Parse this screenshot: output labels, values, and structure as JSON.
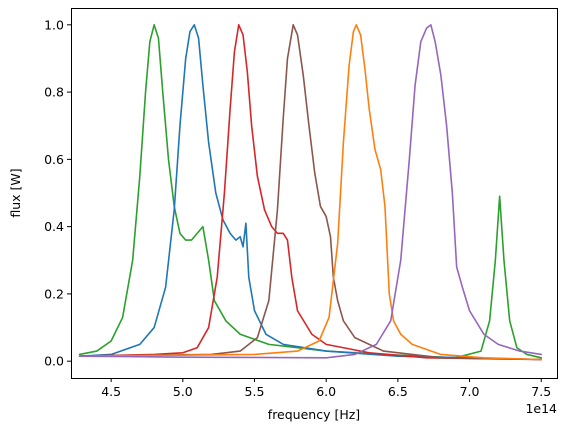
{
  "chart_data": {
    "type": "line",
    "title": "",
    "xlabel": "frequency [Hz]",
    "ylabel": "flux [W]",
    "x_offset_label": "1e14",
    "x_scale_exponent": 14,
    "xlim": [
      422000000000000.0,
      761000000000000.0
    ],
    "ylim": [
      -0.05,
      1.05
    ],
    "x_ticks": [
      450000000000000.0,
      500000000000000.0,
      550000000000000.0,
      600000000000000.0,
      650000000000000.0,
      700000000000000.0,
      750000000000000.0
    ],
    "x_tick_labels": [
      "4.5",
      "5.0",
      "5.5",
      "6.0",
      "6.5",
      "7.0",
      "7.5"
    ],
    "y_ticks": [
      0.0,
      0.2,
      0.4,
      0.6,
      0.8,
      1.0
    ],
    "y_tick_labels": [
      "0.0",
      "0.2",
      "0.4",
      "0.6",
      "0.8",
      "1.0"
    ],
    "grid": false,
    "legend": "none",
    "series": [
      {
        "color": "#2ca02c",
        "points": [
          [
            428000000000000.0,
            0.02
          ],
          [
            440000000000000.0,
            0.03
          ],
          [
            450000000000000.0,
            0.06
          ],
          [
            458000000000000.0,
            0.13
          ],
          [
            465000000000000.0,
            0.3
          ],
          [
            470000000000000.0,
            0.55
          ],
          [
            474000000000000.0,
            0.8
          ],
          [
            477000000000000.0,
            0.95
          ],
          [
            480000000000000.0,
            1.0
          ],
          [
            483000000000000.0,
            0.96
          ],
          [
            486000000000000.0,
            0.8
          ],
          [
            490000000000000.0,
            0.6
          ],
          [
            494000000000000.0,
            0.46
          ],
          [
            498000000000000.0,
            0.38
          ],
          [
            502000000000000.0,
            0.36
          ],
          [
            506000000000000.0,
            0.36
          ],
          [
            510000000000000.0,
            0.38
          ],
          [
            514000000000000.0,
            0.4
          ],
          [
            518000000000000.0,
            0.3
          ],
          [
            522000000000000.0,
            0.18
          ],
          [
            530000000000000.0,
            0.12
          ],
          [
            540000000000000.0,
            0.08
          ],
          [
            560000000000000.0,
            0.05
          ],
          [
            580000000000000.0,
            0.04
          ],
          [
            600000000000000.0,
            0.03
          ],
          [
            640000000000000.0,
            0.02
          ],
          [
            690000000000000.0,
            0.01
          ],
          [
            708000000000000.0,
            0.03
          ],
          [
            714000000000000.0,
            0.12
          ],
          [
            718000000000000.0,
            0.3
          ],
          [
            721000000000000.0,
            0.49
          ],
          [
            724000000000000.0,
            0.3
          ],
          [
            728000000000000.0,
            0.12
          ],
          [
            733000000000000.0,
            0.04
          ],
          [
            740000000000000.0,
            0.02
          ],
          [
            750000000000000.0,
            0.01
          ]
        ]
      },
      {
        "color": "#1f77b4",
        "points": [
          [
            428000000000000.0,
            0.015
          ],
          [
            450000000000000.0,
            0.02
          ],
          [
            470000000000000.0,
            0.05
          ],
          [
            480000000000000.0,
            0.1
          ],
          [
            488000000000000.0,
            0.22
          ],
          [
            494000000000000.0,
            0.45
          ],
          [
            498000000000000.0,
            0.7
          ],
          [
            502000000000000.0,
            0.9
          ],
          [
            505000000000000.0,
            0.98
          ],
          [
            508000000000000.0,
            1.0
          ],
          [
            511000000000000.0,
            0.96
          ],
          [
            514000000000000.0,
            0.82
          ],
          [
            518000000000000.0,
            0.65
          ],
          [
            523000000000000.0,
            0.5
          ],
          [
            528000000000000.0,
            0.42
          ],
          [
            533000000000000.0,
            0.38
          ],
          [
            537000000000000.0,
            0.36
          ],
          [
            540000000000000.0,
            0.37
          ],
          [
            542000000000000.0,
            0.34
          ],
          [
            544000000000000.0,
            0.41
          ],
          [
            546000000000000.0,
            0.25
          ],
          [
            550000000000000.0,
            0.15
          ],
          [
            558000000000000.0,
            0.08
          ],
          [
            570000000000000.0,
            0.05
          ],
          [
            600000000000000.0,
            0.03
          ],
          [
            650000000000000.0,
            0.015
          ],
          [
            700000000000000.0,
            0.01
          ],
          [
            750000000000000.0,
            0.005
          ]
        ]
      },
      {
        "color": "#d62728",
        "points": [
          [
            428000000000000.0,
            0.015
          ],
          [
            480000000000000.0,
            0.02
          ],
          [
            500000000000000.0,
            0.025
          ],
          [
            510000000000000.0,
            0.04
          ],
          [
            518000000000000.0,
            0.1
          ],
          [
            524000000000000.0,
            0.25
          ],
          [
            529000000000000.0,
            0.5
          ],
          [
            533000000000000.0,
            0.75
          ],
          [
            536000000000000.0,
            0.92
          ],
          [
            539000000000000.0,
            1.0
          ],
          [
            542000000000000.0,
            0.97
          ],
          [
            545000000000000.0,
            0.86
          ],
          [
            548000000000000.0,
            0.7
          ],
          [
            552000000000000.0,
            0.55
          ],
          [
            557000000000000.0,
            0.45
          ],
          [
            562000000000000.0,
            0.4
          ],
          [
            566000000000000.0,
            0.38
          ],
          [
            570000000000000.0,
            0.38
          ],
          [
            573000000000000.0,
            0.36
          ],
          [
            576000000000000.0,
            0.25
          ],
          [
            580000000000000.0,
            0.15
          ],
          [
            590000000000000.0,
            0.08
          ],
          [
            600000000000000.0,
            0.05
          ],
          [
            630000000000000.0,
            0.025
          ],
          [
            670000000000000.0,
            0.01
          ],
          [
            750000000000000.0,
            0.005
          ]
        ]
      },
      {
        "color": "#8c564b",
        "points": [
          [
            428000000000000.0,
            0.015
          ],
          [
            520000000000000.0,
            0.02
          ],
          [
            540000000000000.0,
            0.03
          ],
          [
            552000000000000.0,
            0.07
          ],
          [
            560000000000000.0,
            0.18
          ],
          [
            566000000000000.0,
            0.45
          ],
          [
            570000000000000.0,
            0.72
          ],
          [
            573000000000000.0,
            0.9
          ],
          [
            577000000000000.0,
            1.0
          ],
          [
            580000000000000.0,
            0.97
          ],
          [
            584000000000000.0,
            0.85
          ],
          [
            588000000000000.0,
            0.7
          ],
          [
            592000000000000.0,
            0.56
          ],
          [
            596000000000000.0,
            0.46
          ],
          [
            600000000000000.0,
            0.43
          ],
          [
            603000000000000.0,
            0.37
          ],
          [
            605000000000000.0,
            0.25
          ],
          [
            608000000000000.0,
            0.18
          ],
          [
            612000000000000.0,
            0.12
          ],
          [
            620000000000000.0,
            0.07
          ],
          [
            640000000000000.0,
            0.03
          ],
          [
            680000000000000.0,
            0.01
          ],
          [
            750000000000000.0,
            0.005
          ]
        ]
      },
      {
        "color": "#ff7f0e",
        "points": [
          [
            428000000000000.0,
            0.015
          ],
          [
            550000000000000.0,
            0.02
          ],
          [
            580000000000000.0,
            0.03
          ],
          [
            595000000000000.0,
            0.06
          ],
          [
            602000000000000.0,
            0.13
          ],
          [
            608000000000000.0,
            0.35
          ],
          [
            612000000000000.0,
            0.65
          ],
          [
            616000000000000.0,
            0.88
          ],
          [
            619000000000000.0,
            0.98
          ],
          [
            621000000000000.0,
            1.0
          ],
          [
            624000000000000.0,
            0.97
          ],
          [
            627000000000000.0,
            0.87
          ],
          [
            630000000000000.0,
            0.75
          ],
          [
            634000000000000.0,
            0.63
          ],
          [
            638000000000000.0,
            0.57
          ],
          [
            641000000000000.0,
            0.46
          ],
          [
            644000000000000.0,
            0.2
          ],
          [
            647000000000000.0,
            0.12
          ],
          [
            652000000000000.0,
            0.08
          ],
          [
            660000000000000.0,
            0.05
          ],
          [
            680000000000000.0,
            0.02
          ],
          [
            710000000000000.0,
            0.01
          ],
          [
            750000000000000.0,
            0.005
          ]
        ]
      },
      {
        "color": "#9467bd",
        "points": [
          [
            428000000000000.0,
            0.015
          ],
          [
            500000000000000.0,
            0.012
          ],
          [
            600000000000000.0,
            0.01
          ],
          [
            620000000000000.0,
            0.02
          ],
          [
            635000000000000.0,
            0.05
          ],
          [
            645000000000000.0,
            0.12
          ],
          [
            652000000000000.0,
            0.3
          ],
          [
            658000000000000.0,
            0.6
          ],
          [
            662000000000000.0,
            0.82
          ],
          [
            666000000000000.0,
            0.95
          ],
          [
            670000000000000.0,
            0.99
          ],
          [
            673000000000000.0,
            1.0
          ],
          [
            676000000000000.0,
            0.95
          ],
          [
            680000000000000.0,
            0.85
          ],
          [
            684000000000000.0,
            0.7
          ],
          [
            688000000000000.0,
            0.5
          ],
          [
            691000000000000.0,
            0.28
          ],
          [
            695000000000000.0,
            0.22
          ],
          [
            700000000000000.0,
            0.15
          ],
          [
            710000000000000.0,
            0.08
          ],
          [
            720000000000000.0,
            0.05
          ],
          [
            735000000000000.0,
            0.03
          ],
          [
            750000000000000.0,
            0.02
          ]
        ]
      }
    ]
  }
}
